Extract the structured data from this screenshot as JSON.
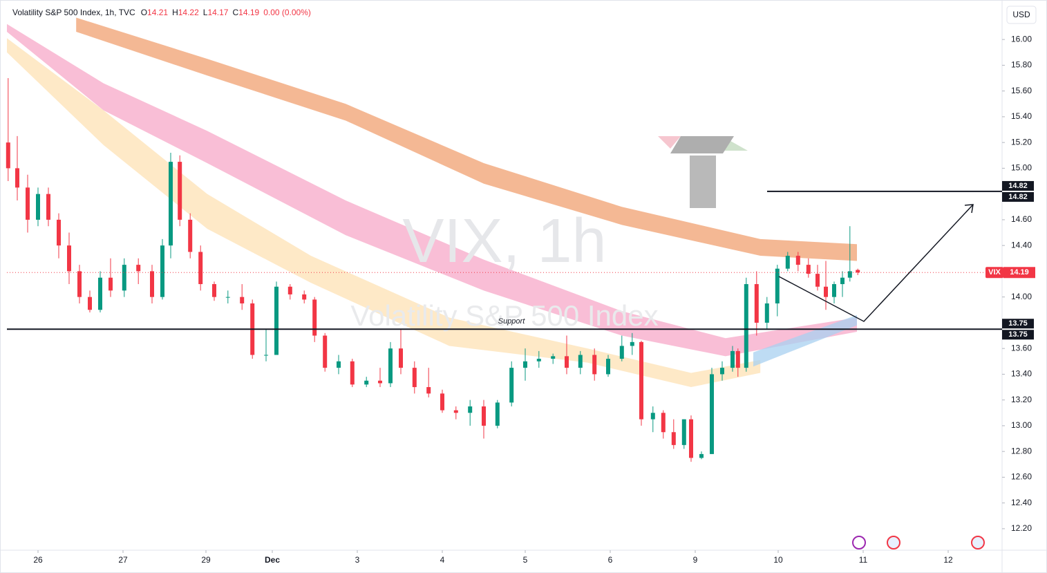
{
  "header": {
    "symbol": "Volatility S&P 500 Index",
    "interval": "1h",
    "source": "TVC",
    "open_key": "O",
    "open": "14.21",
    "high_key": "H",
    "high": "14.22",
    "low_key": "L",
    "low": "14.17",
    "close_key": "C",
    "close": "14.19",
    "change": "0.00 (0.00%)"
  },
  "currency": "USD",
  "watermark": {
    "main": "VIX, 1h",
    "sub": "Volatility S&P 500 Index"
  },
  "chart_data": {
    "type": "candlestick",
    "xlim": [
      0,
      240
    ],
    "ylim": [
      12.06,
      16.28
    ],
    "xticks": [
      {
        "value": 7.5,
        "label": "26"
      },
      {
        "value": 28,
        "label": "27"
      },
      {
        "value": 48,
        "label": "29"
      },
      {
        "value": 64,
        "label": "Dec"
      },
      {
        "value": 84.5,
        "label": "3"
      },
      {
        "value": 105,
        "label": "4"
      },
      {
        "value": 125,
        "label": "5"
      },
      {
        "value": 145.5,
        "label": "6"
      },
      {
        "value": 166,
        "label": "9"
      },
      {
        "value": 186,
        "label": "10"
      },
      {
        "value": 206.5,
        "label": "11"
      },
      {
        "value": 227,
        "label": "12"
      }
    ],
    "yticks": [
      {
        "value": 16,
        "label": "16.00"
      },
      {
        "value": 15.8,
        "label": "15.80"
      },
      {
        "value": 15.6,
        "label": "15.60"
      },
      {
        "value": 15.4,
        "label": "15.40"
      },
      {
        "value": 15.2,
        "label": "15.20"
      },
      {
        "value": 15,
        "label": "15.00"
      },
      {
        "value": 14.6,
        "label": "14.60"
      },
      {
        "value": 14.4,
        "label": "14.40"
      },
      {
        "value": 14,
        "label": "14.00"
      },
      {
        "value": 13.6,
        "label": "13.60"
      },
      {
        "value": 13.4,
        "label": "13.40"
      },
      {
        "value": 13.2,
        "label": "13.20"
      },
      {
        "value": 13,
        "label": "13.00"
      },
      {
        "value": 12.8,
        "label": "12.80"
      },
      {
        "value": 12.6,
        "label": "12.60"
      },
      {
        "value": 12.4,
        "label": "12.40"
      },
      {
        "value": 12.2,
        "label": "12.20"
      }
    ],
    "up_color": "#089981",
    "down_color": "#f23645",
    "x": [
      0.3,
      2.5,
      5,
      7.5,
      10,
      12.5,
      15,
      17.5,
      20,
      22.5,
      25,
      28.3,
      31.7,
      35,
      37.5,
      39.5,
      41.7,
      44.2,
      46.7,
      50,
      53.3,
      56.7,
      59.2,
      62.5,
      65,
      68.3,
      71.7,
      74.2,
      76.7,
      80,
      83.3,
      86.7,
      90,
      92.5,
      95,
      98.3,
      101.7,
      105,
      108.3,
      111.7,
      115,
      118.3,
      121.7,
      125,
      128.3,
      131.7,
      135,
      138.3,
      141.7,
      145,
      148.3,
      150.8,
      153,
      155.8,
      158.3,
      160.8,
      163.3,
      165,
      167.5,
      170,
      172.5,
      175,
      176.3,
      178.3,
      180.8,
      183.3,
      185.8,
      188.3,
      190.8,
      193.3,
      195.5,
      197.5,
      199.5,
      201.5,
      203.3,
      205.2
    ],
    "open": [
      15.2,
      15.0,
      14.85,
      14.6,
      14.8,
      14.6,
      14.4,
      14.2,
      14.0,
      13.9,
      14.15,
      14.05,
      14.25,
      14.2,
      14.0,
      14.4,
      15.05,
      14.6,
      14.35,
      14.1,
      14.0,
      14.0,
      13.95,
      13.55,
      13.55,
      14.08,
      14.02,
      13.98,
      13.7,
      13.45,
      13.5,
      13.32,
      13.35,
      13.33,
      13.6,
      13.45,
      13.3,
      13.25,
      13.12,
      13.1,
      13.15,
      13.0,
      13.18,
      13.45,
      13.5,
      13.52,
      13.54,
      13.45,
      13.55,
      13.4,
      13.52,
      13.62,
      13.65,
      13.05,
      13.1,
      12.95,
      12.85,
      13.05,
      12.75,
      12.78,
      13.4,
      13.45,
      13.58,
      13.45,
      14.1,
      13.8,
      13.95,
      14.22,
      14.32,
      14.25,
      14.18,
      14.08,
      14.0,
      14.1,
      14.15,
      14.21
    ],
    "high": [
      15.7,
      15.25,
      14.95,
      14.85,
      14.85,
      14.65,
      14.5,
      14.25,
      14.05,
      14.2,
      14.3,
      14.3,
      14.3,
      14.25,
      14.45,
      15.12,
      15.1,
      14.65,
      14.4,
      14.12,
      14.05,
      14.1,
      13.98,
      13.75,
      14.12,
      14.1,
      14.05,
      14.0,
      13.72,
      13.55,
      13.52,
      13.38,
      13.45,
      13.65,
      13.75,
      13.5,
      13.45,
      13.28,
      13.15,
      13.2,
      13.2,
      13.2,
      13.5,
      13.6,
      13.58,
      13.56,
      13.7,
      13.58,
      13.6,
      13.55,
      13.7,
      13.72,
      13.66,
      13.15,
      13.12,
      13.05,
      13.05,
      13.08,
      12.8,
      13.45,
      13.5,
      13.62,
      13.6,
      14.15,
      14.2,
      14.0,
      14.25,
      14.35,
      14.35,
      14.3,
      14.25,
      14.28,
      14.12,
      14.2,
      14.55,
      14.22
    ],
    "low": [
      14.9,
      14.75,
      14.5,
      14.55,
      14.55,
      14.3,
      14.1,
      13.95,
      13.88,
      13.88,
      14.0,
      14.0,
      14.1,
      13.95,
      13.98,
      14.3,
      14.55,
      14.3,
      14.05,
      13.97,
      13.95,
      13.9,
      13.52,
      13.5,
      13.55,
      13.98,
      13.95,
      13.65,
      13.42,
      13.4,
      13.3,
      13.3,
      13.3,
      13.3,
      13.4,
      13.25,
      13.22,
      13.1,
      13.05,
      13.0,
      12.9,
      12.98,
      13.15,
      13.35,
      13.45,
      13.48,
      13.4,
      13.4,
      13.35,
      13.38,
      13.5,
      13.55,
      13.0,
      12.95,
      12.9,
      12.82,
      12.82,
      12.72,
      12.74,
      12.78,
      13.35,
      13.42,
      13.38,
      13.42,
      13.7,
      13.75,
      13.85,
      14.2,
      14.2,
      14.15,
      14.05,
      13.9,
      13.95,
      14.0,
      14.12,
      14.17
    ],
    "close": [
      15.0,
      14.85,
      14.6,
      14.8,
      14.6,
      14.4,
      14.2,
      14.0,
      13.9,
      14.15,
      14.05,
      14.25,
      14.2,
      14.0,
      14.4,
      15.05,
      14.6,
      14.35,
      14.1,
      14.0,
      14.0,
      13.95,
      13.55,
      13.55,
      14.08,
      14.02,
      13.98,
      13.7,
      13.45,
      13.5,
      13.32,
      13.35,
      13.33,
      13.6,
      13.45,
      13.3,
      13.25,
      13.12,
      13.1,
      13.15,
      13.0,
      13.18,
      13.45,
      13.5,
      13.52,
      13.54,
      13.45,
      13.55,
      13.4,
      13.52,
      13.62,
      13.65,
      13.05,
      13.1,
      12.95,
      12.85,
      13.05,
      12.75,
      12.78,
      13.4,
      13.45,
      13.58,
      13.45,
      14.1,
      13.8,
      13.95,
      14.22,
      14.32,
      14.25,
      14.18,
      14.08,
      14.0,
      14.1,
      14.15,
      14.2,
      14.19
    ],
    "bands": [
      {
        "color": "#f0a070",
        "x": [
          16.7,
          48.3,
          81.7,
          115,
          148.3,
          181.7,
          205
        ],
        "upper": [
          16.17,
          15.85,
          15.5,
          15.04,
          14.7,
          14.45,
          14.41
        ],
        "lower": [
          16.06,
          15.72,
          15.37,
          14.88,
          14.56,
          14.32,
          14.28
        ]
      },
      {
        "color": "#f7a8c8",
        "x": [
          0,
          23.3,
          48.3,
          81.7,
          115,
          148.3,
          173.3,
          205
        ],
        "upper": [
          16.12,
          15.66,
          15.29,
          14.75,
          14.29,
          13.89,
          13.68,
          13.84
        ],
        "lower": [
          16.06,
          15.45,
          15.04,
          14.48,
          14.05,
          13.7,
          13.54,
          13.73
        ]
      },
      {
        "color": "#fde2b4",
        "x": [
          0,
          23.3,
          48.3,
          73.3,
          106.7,
          140,
          165,
          181.7
        ],
        "upper": [
          16.01,
          15.45,
          14.8,
          14.32,
          13.84,
          13.6,
          13.41,
          13.51
        ],
        "lower": [
          15.9,
          15.18,
          14.53,
          14.11,
          13.62,
          13.49,
          13.3,
          13.41
        ]
      },
      {
        "color": "#a8d0f0",
        "x": [
          180,
          205
        ],
        "upper": [
          13.57,
          13.86
        ],
        "lower": [
          13.46,
          13.78
        ]
      }
    ],
    "hlines": [
      {
        "value": 13.75,
        "label": "13.75",
        "annotation": "Support"
      },
      {
        "value": 14.82,
        "label": "14.82"
      }
    ],
    "last": {
      "value": 14.19,
      "label": "14.19",
      "symbol": "VIX"
    }
  }
}
